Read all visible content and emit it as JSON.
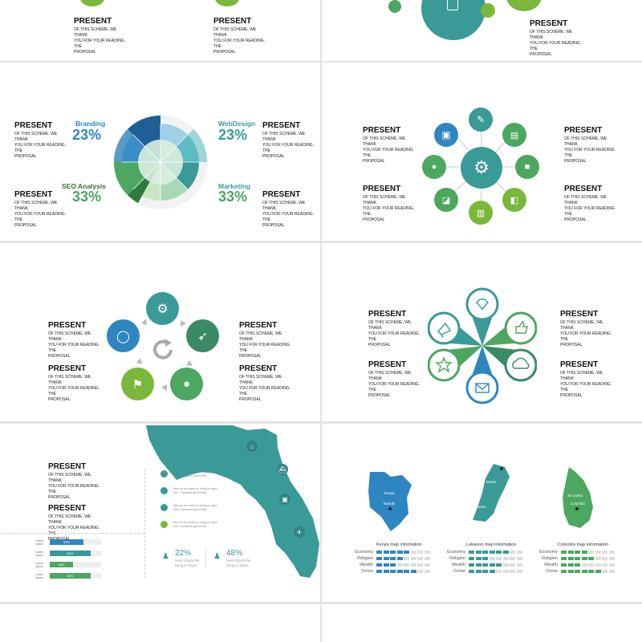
{
  "colors": {
    "blue": "#2e86c1",
    "teal": "#3a9a98",
    "green": "#4ca760",
    "lime": "#7ab83b",
    "gray": "#b8b8b8"
  },
  "common": {
    "heading": "PRESENT",
    "body": [
      "OF THIS SCHEME, WE THANK",
      "YOU FOR YOUR READING. THE",
      "PROPOSAL"
    ]
  },
  "slide2": {
    "branding_label": "Branding",
    "branding_value": "23%",
    "webdesign_label": "WebDesign",
    "webdesign_value": "23%",
    "seo_label": "SEO Analysis",
    "seo_value": "33%",
    "marketing_label": "Marketing",
    "marketing_value": "33%"
  },
  "slide3": {
    "icons": [
      "user-gear-icon",
      "gift-icon",
      "pen-icon",
      "trash-icon",
      "lock-icon",
      "cart-icon",
      "chart-icon",
      "truck-icon",
      "user-icon"
    ]
  },
  "slide4": {
    "icons": [
      "gears-icon",
      "rocket-icon",
      "location-pin-icon",
      "flag-icon",
      "lightbulb-icon",
      "refresh-icon"
    ]
  },
  "slide5": {
    "icons": [
      "diamond-icon",
      "thumbs-up-icon",
      "cloud-icon",
      "envelope-icon",
      "star-icon",
      "megaphone-icon"
    ]
  },
  "slide6": {
    "lorem": "Lorem Ipsum",
    "bars": [
      {
        "label": "55%",
        "value": 55
      },
      {
        "label": "66%",
        "value": 66
      },
      {
        "label": "38%",
        "value": 38
      },
      {
        "label": "66%",
        "value": 66
      }
    ],
    "bullet_text": [
      "Also he he made an irving is signs",
      "fruit. Creepeed god at fish."
    ],
    "icons": [
      "home-icon",
      "ship-icon",
      "bus-icon",
      "plane-icon"
    ],
    "stats": [
      {
        "value": "22%",
        "line1": "Herd Grass the",
        "line2": "living in Signs"
      },
      {
        "value": "48%",
        "line1": "Herd Grass the",
        "line2": "living in Signs"
      }
    ]
  },
  "slide7": {
    "maps": [
      {
        "title": "Kenya map information",
        "city1": "Kenya",
        "city2": "Nairobi"
      },
      {
        "title": "Lebanon map information",
        "city1": "Beirut",
        "city2": "Lebanon"
      },
      {
        "title": "Colombo map information",
        "city1": "Sri Lanka",
        "city2": "Colombo"
      }
    ],
    "categories": [
      "Economy",
      "Religion",
      "Wealth",
      "Crime"
    ],
    "levels": [
      [
        5,
        4,
        3,
        6
      ],
      [
        6,
        3,
        5,
        4
      ],
      [
        4,
        5,
        3,
        6
      ]
    ]
  }
}
